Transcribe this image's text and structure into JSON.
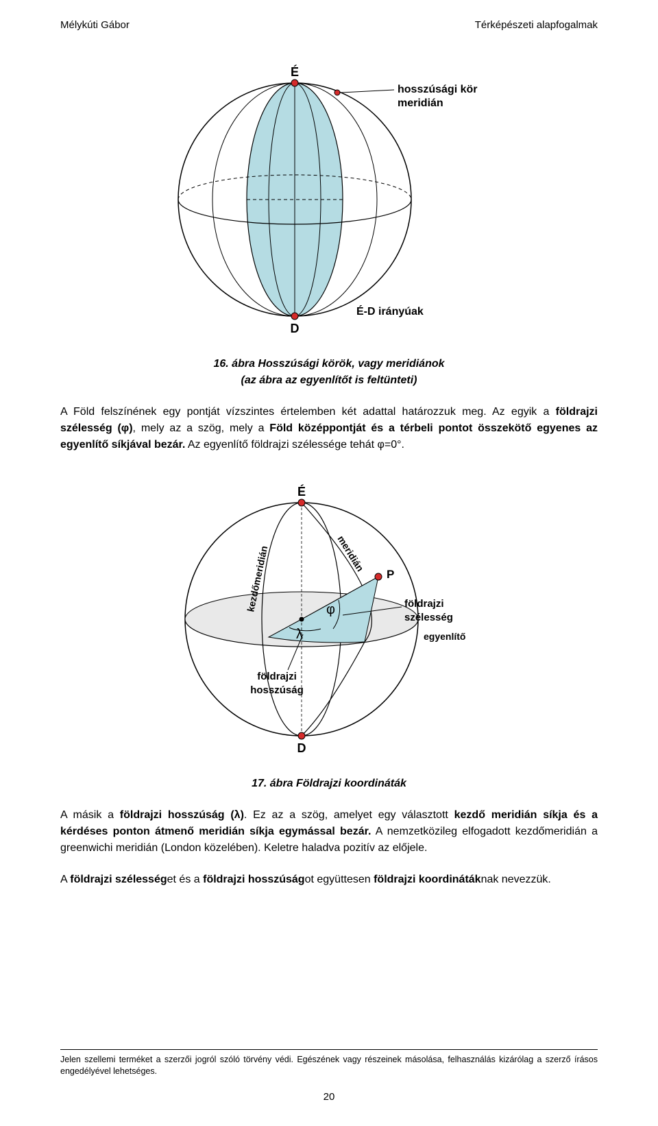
{
  "header": {
    "left": "Mélykúti Gábor",
    "right": "Térképészeti alapfogalmak"
  },
  "figure16": {
    "labels": {
      "north": "É",
      "south": "D",
      "meridian_l1": "hosszúsági kör",
      "meridian_l2": "meridián",
      "axis": "É-D irányúak"
    },
    "colors": {
      "fill": "#b5dce3",
      "stroke": "#000000",
      "dot": "#d52b2b",
      "bg": "#ffffff"
    }
  },
  "caption16_l1": "16. ábra Hosszúsági körök, vagy meridiánok",
  "caption16_l2": "(az ábra az egyenlítőt is feltünteti)",
  "para1_a": "A Föld felszínének egy pontját vízszintes értelemben két adattal határozzuk meg. Az egyik a ",
  "para1_b": "földrajzi szélesség (φ)",
  "para1_c": ", mely az a szög, mely a ",
  "para1_d": "Föld középpontját és a térbeli pontot összekötő egyenes az egyenlítő síkjával bezár.",
  "para1_e": " Az egyenlítő földrajzi szélessége tehát φ=0°.",
  "figure17": {
    "labels": {
      "north": "É",
      "south": "D",
      "P": "P",
      "phi": "φ",
      "lambda": "λ",
      "kezdo": "kezdőmeridián",
      "meridian": "meridián",
      "szelesseg_l1": "földrajzi",
      "szelesseg_l2": "szélesség",
      "egyenlito": "egyenlítő",
      "hosszusag_l1": "földrajzi",
      "hosszusag_l2": "hosszúság"
    },
    "colors": {
      "wedge": "#b5dce3",
      "eqfill": "#e9e9e9",
      "stroke": "#000000",
      "dot": "#d52b2b",
      "bg": "#ffffff"
    }
  },
  "caption17": "17. ábra Földrajzi koordináták",
  "para2_a": "A másik a ",
  "para2_b": "földrajzi hosszúság (λ)",
  "para2_c": ". Ez az a szög, amelyet egy választott ",
  "para2_d": "kezdő meridián síkja és a kérdéses ponton átmenő meridián síkja egymással bezár.",
  "para2_e": " A nemzetközileg elfogadott kezdőmeridián a greenwichi meridián (London közelében). Keletre haladva pozitív az előjele.",
  "para3_a": "A ",
  "para3_b": "földrajzi szélesség",
  "para3_c": "et és a ",
  "para3_d": "földrajzi hosszúság",
  "para3_e": "ot együttesen ",
  "para3_f": "földrajzi koordináták",
  "para3_g": "nak nevezzük.",
  "footnote": "Jelen szellemi terméket a szerzői jogról szóló törvény védi. Egészének vagy részeinek másolása, felhasználás kizárólag a szerző írásos engedélyével lehetséges.",
  "pagenum": "20"
}
